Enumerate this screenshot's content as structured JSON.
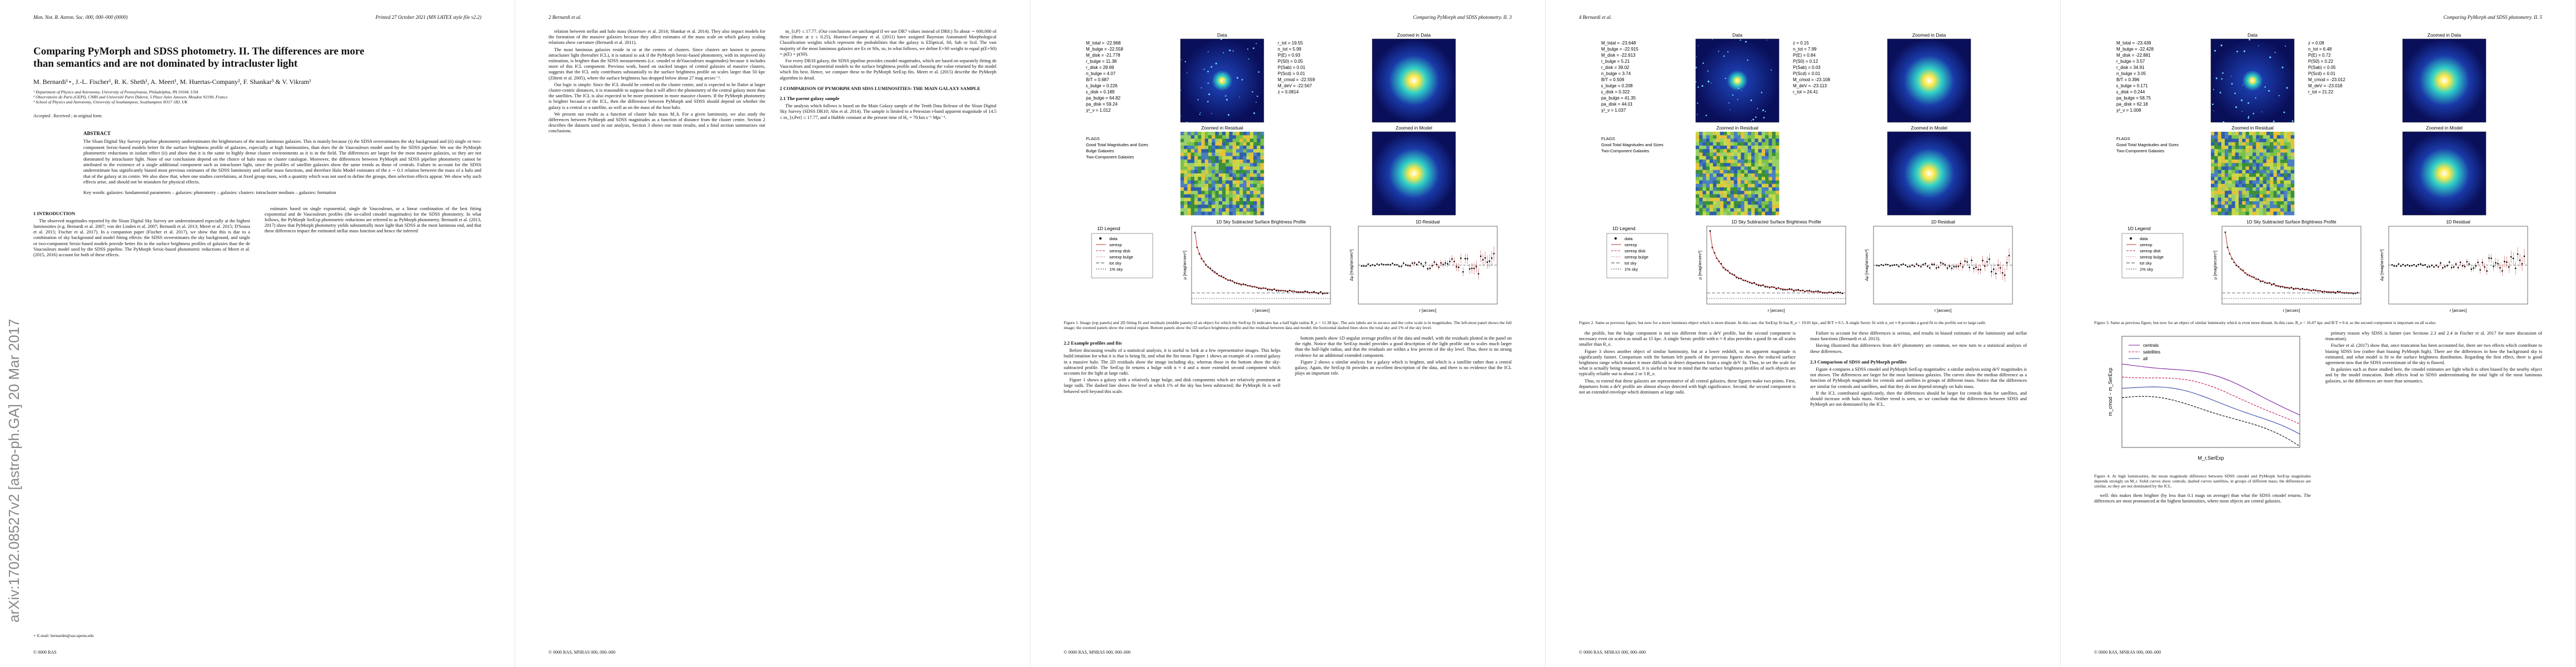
{
  "arxiv_stamp": "arXiv:1702.08527v2  [astro-ph.GA]  20 Mar 2017",
  "pages": [
    {
      "header": {
        "left": "Mon. Not. R. Astron. Soc. 000, 000–000 (0000)",
        "right": "Printed 27 October 2021    (MN LATEX style file v2.2)"
      },
      "front": {
        "title": "Comparing PyMorph and SDSS photometry. II. The differences are more than semantics and are not dominated by intracluster light",
        "authors": "M. Bernardi¹⋆, J.-L. Fischer¹, R. K. Sheth¹, A. Meert¹, M. Huertas-Company², F. Shankar³ & V. Vikram¹",
        "affiliations": [
          "¹ Department of Physics and Astronomy, University of Pennsylvania, Philadelphia, PA 19104, USA",
          "² Observatoire de Paris (GEPI), CNRS and Université Paris Diderot, 5 Place Jules Janssen, Meudon 92190, France",
          "³ School of Physics and Astronomy, University of Southampton, Southampton SO17 1BJ, UK"
        ],
        "received": "Accepted . Received ; in original form",
        "abstract_heading": "ABSTRACT",
        "abstract": "The Sloan Digital Sky Survey pipeline photometry underestimates the brightnesses of the most luminous galaxies. This is mainly because (i) the SDSS overestimates the sky background and (ii) single or two-component Sersic-based models better fit the surface brightness profile of galaxies, especially at high luminosities, than does the de Vaucouleurs model used by the SDSS pipeline. We use the PyMorph photometric reductions to isolate effect (ii) and show that it is the same in highly dense cluster environments as it is in the field. The differences are larger for the most massive galaxies, so they are not dominated by intracluster light. None of our conclusions depend on the choice of halo mass or cluster catalogue. Moreover, the differences between PyMorph and SDSS pipeline photometry cannot be attributed to the existence of a single additional component such as intracluster light, since the profiles of satellite galaxies show the same trends as those of centrals. Failure to account for the SDSS underestimate has significantly biased most previous estimates of the SDSS luminosity and stellar mass functions, and therefore Halo Model estimates of the z ∼ 0.1 relation between the mass of a halo and that of the galaxy at its centre. We also show that, when one studies correlations, at fixed group mass, with a quantity which was not used to define the groups, then selection effects appear. We show why such effects arise, and should not be mistaken for physical effects.",
        "keywords": "Key words: galaxies: fundamental parameters – galaxies: photometry – galaxies: clusters: intracluster medium – galaxies: formation"
      },
      "columns": [
        [
          {
            "h": "1  INTRODUCTION"
          },
          {
            "p": "The observed magnitudes reported by the Sloan Digital Sky Survey are underestimated especially at the highest luminosities (e.g. Bernardi et al. 2007; von der Linden et al. 2007; Bernardi et al. 2013; Meert et al. 2015; D'Souza et al. 2015; Fischer et al. 2017). In a companion paper (Fischer et al. 2017), we show that this is due to a combination of sky background and model fitting effects: the SDSS overestimates the sky background, and single or two-component Sersic-based models provide better fits to the surface brightness profiles of galaxies than the de Vaucouleurs model used by the SDSS pipeline. The PyMorph Sersic-based photometric reductions of Meert et al. (2015, 2016) account for both of these effects."
          }
        ],
        [
          {
            "p": "estimates based on single exponential, single de Vaucouleurs, or a linear combination of the best fitting exponential and de Vaucouleurs profiles (the so-called cmodel magnitudes) for the SDSS photometry. In what follows, the PyMorph SerExp photometric reductions are referred to as PyMorph photometry. Bernardi et al. (2013, 2017) show that PyMorph photometry yields substantially more light than SDSS at the most luminous end, and that these differences impact the estimated stellar mass function and hence the inferred"
          }
        ]
      ],
      "footnote": "⋆ E-mail: bernardm@sas.upenn.edu",
      "footer": "© 0000 RAS"
    },
    {
      "header": {
        "left": "2    Bernardi et al."
      },
      "columns": [
        [
          {
            "p": "relation between stellar and halo mass (Kravtsov et al. 2014; Shankar et al. 2014). They also impact models for the formation of the massive galaxies because they affect estimates of the mass scale on which galaxy scaling relations show curvature (Bernardi et al. 2011)."
          },
          {
            "p": "The most luminous galaxies reside in or at the centres of clusters. Since clusters are known to possess intracluster light (hereafter ICL), it is natural to ask if the PyMorph Sersic-based photometry, with its improved sky estimation, is brighter than the SDSS measurements (i.e. cmodel or deVaucouleurs magnitudes) because it includes more of this ICL component. Previous work, based on stacked images of central galaxies of massive clusters, suggests that the ICL only contributes substantially to the surface brightness profile on scales larger than 50 kpc (Zibetti et al. 2005), where the surface brightness has dropped below about 27 mag arcsec⁻²."
          },
          {
            "p": "Our logic is simple: Since the ICL should be centred on the cluster centre, and is expected to be flatter at larger cluster-centric distances, it is reasonable to suppose that it will affect the photometry of the central galaxy more than the satellites. The ICL is also expected to be more prominent in more massive clusters. If the PyMorph photometry is brighter because of the ICL, then the difference between PyMorph and SDSS should depend on whether the galaxy is a central or a satellite, as well as on the mass of the host halo."
          },
          {
            "p": "We present our results as a function of cluster halo mass M_h. For a given luminosity, we also study the differences between PyMorph and SDSS magnitudes as a function of distance from the cluster centre. Section 2 describes the datasets used in our analysis, Section 3 shows our main results, and a final section summarizes our conclusions."
          }
        ],
        [
          {
            "p": "m_{r,P} ≤ 17.77. (Our conclusions are unchanged if we use DR7 values instead of DR8.) To about ∼ 600,000 of these (those at z ≤ 0.25), Huertas-Company et al. (2011) have assigned Bayesian Automated Morphological Classification weights which represent the probabilities that the galaxy is Elliptical, S0, Sab or Scd. The vast majority of the most luminous galaxies are Es or S0s, so, in what follows, we define E+S0 weight to equal p(E+S0) = p(E) + p(S0)."
          },
          {
            "p": "For every DR10 galaxy, the SDSS pipeline provides cmodel magnitudes, which are based on separately fitting de Vaucouleurs and exponential models to the surface brightness profile and choosing the value returned by the model which fits best. Hence, we compare these to the PyMorph SerExp fits. Meert et al. (2015) describe the PyMorph algorithm in detail."
          },
          {
            "h": "2  COMPARISON OF PYMORPH AND SDSS LUMINOSITIES: THE MAIN GALAXY SAMPLE"
          },
          {
            "h": "2.1  The parent galaxy sample"
          },
          {
            "p": "The analysis which follows is based on the Main Galaxy sample of the Tenth Data Release of the Sloan Digital Sky Survey (SDSS DR10; Ahn et al. 2014). The sample is limited to a Petrosian r-band apparent magnitude of 14.5 ≤ m_{r,Pet} ≤ 17.77, and a Hubble constant at the present time of H₀ = 70 km s⁻¹ Mpc⁻¹."
          }
        ]
      ],
      "footer": "© 0000 RAS, MNRAS 000, 000–000"
    },
    {
      "header": {
        "right": "Comparing PyMorph and SDSS photometry. II.    3"
      },
      "figure": {
        "stats_left": [
          "M_total = -22.968",
          "M_bulge = -22.558",
          "M_disk = -21.778",
          "r_bulge = 11.38",
          "r_disk = 28.69",
          "n_bulge = 4.07",
          "B/T = 0.687",
          "ε_bulge = 0.226",
          "ε_disk = 0.189",
          "pa_bulge = 64.82",
          "pa_disk = 59.24",
          "χ²_ν = 1.012"
        ],
        "stats_right": [
          "r_tot = 19.55",
          "n_tot = 5.99",
          "P(E) = 0.93",
          "P(S0) = 0.05",
          "P(Sab) = 0.01",
          "P(Scd) = 0.01",
          "M_cmod = -22.559",
          "M_deV = -22.567",
          "z = 0.0814"
        ],
        "flags": [
          "FLAGS",
          "Good Total Magnitudes and Sizes",
          "Bulge Galaxies",
          "Two-Component Galaxies"
        ],
        "panel_titles": [
          "Data",
          "Zoomed in Data",
          "Zoomed in Model",
          "Zoomed in Residual"
        ],
        "legend_title": "1D Legend",
        "legend": [
          "data",
          "serexp",
          "serexp disk",
          "serexp bulge",
          "tot sky",
          "1% sky"
        ],
        "profile_title": "1D Sky Subtracted Surface Brightness Profile",
        "residual_title": "1D Residual",
        "profile_ylabel": "μ [mag/arcsec²]",
        "residual_ylabel": "Δμ [mag/arcsec²]",
        "xlabel": "r [arcsec]",
        "caption": "Figure 1. Image (top panels) and 2D fitting fit and residuals (middle panels) of an object for which the SerExp fit indicates has a half light radius R_e = 11.38 kpc. The axis labels are in arcsecs and the color scale is in magnitudes. The left-most panel shows the full image; the zoomed panels show the central region. Bottom panels show the 1D surface brightness profile and the residual between data and model; the horizontal dashed lines show the total sky and 1% of the sky level."
      },
      "columns": [
        [
          {
            "h": "2.2  Example profiles and fits"
          },
          {
            "p": "Before discussing results of a statistical analysis, it is useful to look at a few representative images. This helps build intuition for what it is that is being fit, and what the fits mean. Figure 1 shows an example of a central galaxy in a massive halo. The 2D residuals show the image including sky, whereas those in the bottom show the sky-subtracted profile. The SerExp fit returns a bulge with n ≈ 4 and a more extended second component which accounts for the light at large radii."
          },
          {
            "p": "Figure 1 shows a galaxy with a relatively large bulge, and disk components which are relatively prominent at large radii. The dashed line shows the level at which 1% of the sky has been subtracted; the PyMorph fit is well behaved well beyond this scale."
          }
        ],
        [
          {
            "p": "bottom panels show 1D angular average profiles of the data and model, with the residuals plotted in the panel on the right. Notice that the SerExp model provides a good description of the light profile out to scales much larger than the half-light radius, and that the residuals are within a few percent of the sky level. Thus, there is no strong evidence for an additional extended component."
          },
          {
            "p": "Figure 2 shows a similar analysis for a galaxy which is brighter, and which is a satellite rather than a central galaxy. Again, the SerExp fit provides an excellent description of the data, and there is no evidence that the ICL plays an important role."
          }
        ]
      ],
      "footer": "© 0000 RAS, MNRAS 000, 000–000"
    },
    {
      "header": {
        "left": "4    Bernardi et al."
      },
      "figure": {
        "stats_left": [
          "M_total = -23.648",
          "M_bulge = -22.915",
          "M_disk = -22.913",
          "r_bulge = 5.21",
          "r_disk = 39.02",
          "n_bulge = 3.74",
          "B/T = 0.509",
          "ε_bulge = 0.208",
          "ε_disk = 0.322",
          "pa_bulge = 41.35",
          "pa_disk = 44.01",
          "χ²_ν = 1.037"
        ],
        "stats_right": [
          "z = 0.15",
          "n_tot = 7.99",
          "P(E) = 0.84",
          "P(S0) = 0.12",
          "P(Sab) = 0.03",
          "P(Scd) = 0.01",
          "M_cmod = -23.108",
          "M_deV = -23.113",
          "r_tot = 24.41"
        ],
        "flags": [
          "FLAGS",
          "Good Total Magnitudes and Sizes",
          "Two-Component Galaxies"
        ],
        "panel_titles": [
          "Data",
          "Zoomed in Data",
          "Zoomed in Model",
          "Zoomed in Residual"
        ],
        "legend_title": "1D Legend",
        "legend": [
          "data",
          "serexp",
          "serexp disk",
          "serexp bulge",
          "tot sky",
          "1% sky"
        ],
        "profile_title": "1D Sky Subtracted Surface Brightness Profile",
        "residual_title": "1D Residual",
        "profile_ylabel": "μ [mag/arcsec²]",
        "residual_ylabel": "Δμ [mag/arcsec²]",
        "xlabel": "r [arcsec]",
        "caption": "Figure 2. Same as previous figure, but now for a more luminous object which is more distant. In this case, the SerExp fit has R_e = 19.05 kpc, and B/T ≈ 0.5. A single Sersic fit with n_tot ≈ 8 provides a good fit to the profile out to large radii."
      },
      "columns": [
        [
          {
            "p": "the profile, but the bulge component is not too different from a deV profile, but the second component is necessary even on scales as small as 15 kpc. A single Sersic profile with n ≈ 8 also provides a good fit on all scales smaller than R_e."
          },
          {
            "p": "Figure 3 shows another object of similar luminosity, but at a lower redshift, so its apparent magnitude is significantly fainter. Comparison with the bottom left panels of the previous figures shows the reduced surface brightness range which makes it more difficult to detect departures from a single deV fit. Thus, to set the scale for what is actually being measured, it is useful to bear in mind that the surface brightness profiles of such objects are typically reliable out to about 2 or 3 R_e."
          },
          {
            "p": "Thus, to extend that these galaxies are representative of all central galaxies, these figures make two points. First, departures from a deV profile are almost always detected with high significance. Second, the second component is not an extended envelope which dominates at large radii."
          }
        ],
        [
          {
            "p": "Failure to account for these differences is serious, and results in biased estimates of the luminosity and stellar mass functions (Bernardi et al. 2013)."
          },
          {
            "p": "Having illustrated that differences from deV photometry are common, we now turn to a statistical analysis of these differences."
          },
          {
            "h": "2.3  Comparison of SDSS and PyMorph profiles"
          },
          {
            "p": "Figure 4 compares a SDSS cmodel and PyMorph SerExp magnitudes: a similar analysis using deV magnitudes is not shown. The differences are larger for the most luminous galaxies. The curves show the median difference as a function of PyMorph magnitude for centrals and satellites in groups of different mass. Notice that the differences are similar for centrals and satellites, and that they do not depend strongly on halo mass."
          },
          {
            "p": "If the ICL contributed significantly, then the differences should be larger for centrals than for satellites, and should increase with halo mass. Neither trend is seen, so we conclude that the differences between SDSS and PyMorph are not dominated by the ICL."
          }
        ]
      ],
      "footer": "© 0000 RAS, MNRAS 000, 000–000"
    },
    {
      "header": {
        "right": "Comparing PyMorph and SDSS photometry. II.    5"
      },
      "figure": {
        "stats_left": [
          "M_total = -23.439",
          "M_bulge = -22.428",
          "M_disk = -22.881",
          "r_bulge = 3.57",
          "r_disk = 34.91",
          "n_bulge = 3.05",
          "B/T = 0.396",
          "ε_bulge = 0.171",
          "ε_disk = 0.244",
          "pa_bulge = 58.75",
          "pa_disk = 62.18",
          "χ²_ν = 1.008"
        ],
        "stats_right": [
          "z = 0.08",
          "n_tot = 6.48",
          "P(E) = 0.72",
          "P(S0) = 0.22",
          "P(Sab) = 0.05",
          "P(Scd) = 0.01",
          "M_cmod = -23.012",
          "M_deV = -23.018",
          "r_tot = 21.22"
        ],
        "flags": [
          "FLAGS",
          "Good Total Magnitudes and Sizes",
          "Two-Component Galaxies"
        ],
        "panel_titles": [
          "Data",
          "Zoomed in Data",
          "Zoomed in Model",
          "Zoomed in Residual"
        ],
        "legend_title": "1D Legend",
        "legend": [
          "data",
          "serexp",
          "serexp disk",
          "serexp bulge",
          "tot sky",
          "1% sky"
        ],
        "profile_title": "1D Sky Subtracted Surface Brightness Profile",
        "residual_title": "1D Residual",
        "profile_ylabel": "μ [mag/arcsec²]",
        "residual_ylabel": "Δμ [mag/arcsec²]",
        "xlabel": "r [arcsec]",
        "caption": "Figure 3. Same as previous figure, but now for an object of similar luminosity which is even more distant. In this case, R_e = 16.07 kpc and B/T ≈ 0.4, so the second component is important on all scales."
      },
      "columns": [
        [
          {
            "plot": {
              "ylabel": "m_cmod − m_SerExp",
              "xlabel": "M_r,SerExp",
              "legend": [
                "centrals",
                "satellites",
                "all"
              ]
            }
          },
          {
            "cap": "Figure 4. At high luminosities, the mean magnitude difference between SDSS cmodel and PyMorph SerExp magnitudes depends strongly on M_r. Solid curves show centrals, dashed curves satellites, in groups of different mass; the differences are similar, so they are not dominated by the ICL."
          },
          {
            "p": "well: this makes them brighter (by less than 0.1 mags on average) than what the SDSS cmodel returns. The differences are most pronounced at the highest luminosities, where most objects are central galaxies."
          }
        ],
        [
          {
            "p": "primary reason why SDSS is fainter (see Sections 2.3 and 2.4 in Fischer et al. 2017 for more discussion of truncation)."
          },
          {
            "p": "Fischer et al. (2017) show that, once truncation has been accounted for, there are two effects which contribute to biasing SDSS low (rather than biasing PyMorph high). There are the differences in how the background sky is estimated, and what model is fit to the surface brightness distribution. Regarding the first effect, there is good agreement now that the SDSS overestimate of the sky is flawed."
          },
          {
            "p": "In galaxies such as those studied here, the cmodel estimates are light which is often biased by the nearby object and by the model truncation. Both effects lead to SDSS underestimating the total light of the most luminous galaxies, so the differences are more than semantics."
          }
        ]
      ],
      "footer": "© 0000 RAS, MNRAS 000, 000–000"
    }
  ]
}
